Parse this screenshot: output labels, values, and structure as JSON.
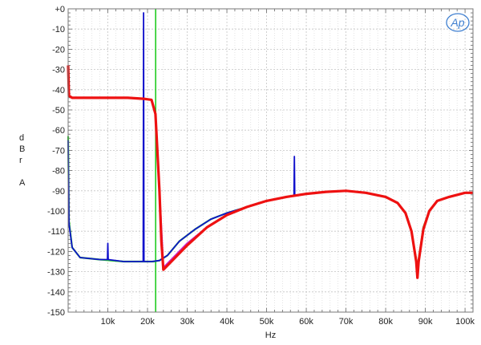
{
  "chart_data": {
    "type": "line",
    "xlabel": "Hz",
    "ylabel_lines": [
      "d",
      "B",
      "r",
      "",
      "A"
    ],
    "logo": "Ap",
    "xlim": [
      0,
      102000
    ],
    "ylim": [
      -150,
      0
    ],
    "x_ticks": [
      {
        "value": 10000,
        "label": "10k"
      },
      {
        "value": 20000,
        "label": "20k"
      },
      {
        "value": 30000,
        "label": "30k"
      },
      {
        "value": 40000,
        "label": "40k"
      },
      {
        "value": 50000,
        "label": "50k"
      },
      {
        "value": 60000,
        "label": "60k"
      },
      {
        "value": 70000,
        "label": "70k"
      },
      {
        "value": 80000,
        "label": "80k"
      },
      {
        "value": 90000,
        "label": "90k"
      },
      {
        "value": 100000,
        "label": "100k"
      }
    ],
    "y_ticks": [
      {
        "value": 0,
        "label": "+0"
      },
      {
        "value": -10,
        "label": "-10"
      },
      {
        "value": -20,
        "label": "-20"
      },
      {
        "value": -30,
        "label": "-30"
      },
      {
        "value": -40,
        "label": "-40"
      },
      {
        "value": -50,
        "label": "-50"
      },
      {
        "value": -60,
        "label": "-60"
      },
      {
        "value": -70,
        "label": "-70"
      },
      {
        "value": -80,
        "label": "-80"
      },
      {
        "value": -90,
        "label": "-90"
      },
      {
        "value": -100,
        "label": "-100"
      },
      {
        "value": -110,
        "label": "-110"
      },
      {
        "value": -120,
        "label": "-120"
      },
      {
        "value": -130,
        "label": "-130"
      },
      {
        "value": -140,
        "label": "-140"
      },
      {
        "value": -150,
        "label": "-150"
      }
    ],
    "grid": true,
    "series": [
      {
        "color": "#22cc22",
        "x": [
          0,
          200,
          1000,
          3000,
          8000,
          14000,
          18000,
          20000,
          21500,
          23000,
          25000,
          28000,
          32000,
          36000,
          40000,
          45000,
          50000,
          55000,
          60000,
          65000,
          70000,
          75000,
          80000,
          83000,
          85000,
          86500,
          87700,
          88000,
          88300,
          89500,
          91000,
          93000,
          96000,
          100000,
          102000
        ],
        "y": [
          -63,
          -105,
          -118,
          -123,
          -124,
          -125,
          -125,
          -125,
          -125,
          -124.5,
          -122,
          -115,
          -109,
          -104,
          -101,
          -98,
          -95,
          -93,
          -91.5,
          -90.5,
          -90,
          -91,
          -93,
          -96,
          -101,
          -110,
          -124,
          -127,
          -124,
          -108,
          -100,
          -95,
          -93,
          -91,
          -91
        ]
      },
      {
        "color": "#cc22cc",
        "x": [
          0,
          200,
          1000,
          5000,
          10000,
          15000,
          19000,
          21000,
          22000,
          23000,
          24000,
          26000,
          30000,
          35000,
          40000,
          45000,
          50000,
          55000,
          60000,
          65000,
          70000,
          75000,
          80000,
          83000,
          85000,
          86500,
          87700,
          88000,
          88300,
          89500,
          91000,
          93000,
          96000,
          100000,
          102000
        ],
        "y": [
          -28,
          -43,
          -44,
          -44,
          -44,
          -44,
          -44.5,
          -45,
          -52,
          -90,
          -128,
          -124,
          -116,
          -108,
          -102,
          -98,
          -95,
          -93,
          -91.5,
          -90.5,
          -90,
          -91,
          -93,
          -96,
          -101,
          -110,
          -125,
          -131,
          -125,
          -109,
          -100,
          -95,
          -93,
          -91,
          -91
        ]
      },
      {
        "color": "#1111cc",
        "x": [
          0,
          200,
          1000,
          3000,
          8000,
          9900,
          10000,
          10100,
          14000,
          18000,
          18900,
          19000,
          19100,
          21000,
          23000,
          25000,
          28000,
          32000,
          36000,
          40000,
          45000,
          50000,
          55000,
          56900,
          57000,
          57100,
          60000,
          65000,
          70000,
          75000,
          80000,
          83000,
          85000,
          86500,
          87700,
          88000,
          88300,
          89500,
          91000,
          93000,
          96000,
          100000,
          102000
        ],
        "y": [
          -65,
          -106,
          -118,
          -123,
          -124,
          -124,
          -116,
          -124,
          -125,
          -125,
          -125,
          -2,
          -125,
          -125,
          -124.5,
          -122,
          -115,
          -109,
          -104,
          -101,
          -98,
          -95,
          -93,
          -92.5,
          -73,
          -92.5,
          -91.5,
          -90.5,
          -90,
          -91,
          -93,
          -96,
          -101,
          -110,
          -125,
          -131,
          -125,
          -109,
          -100,
          -95,
          -93,
          -91,
          -91
        ]
      },
      {
        "color": "#ee1111",
        "x": [
          0,
          200,
          1000,
          5000,
          10000,
          15000,
          19000,
          21000,
          22000,
          23000,
          23500,
          24000,
          26000,
          30000,
          35000,
          40000,
          45000,
          50000,
          55000,
          60000,
          65000,
          70000,
          75000,
          80000,
          83000,
          85000,
          86500,
          87700,
          88000,
          88300,
          89500,
          91000,
          93000,
          96000,
          100000,
          102000
        ],
        "y": [
          -28,
          -43,
          -44,
          -44,
          -44,
          -44,
          -44.5,
          -45,
          -52,
          -90,
          -115,
          -129,
          -125,
          -117,
          -108,
          -102,
          -98,
          -95,
          -93,
          -91.5,
          -90.5,
          -90,
          -91,
          -93,
          -96,
          -101,
          -110,
          -125,
          -133,
          -125,
          -109,
          -100,
          -95,
          -93,
          -91,
          -91
        ]
      }
    ],
    "vertical_markers": [
      {
        "x": 22050,
        "color": "#22cc22"
      }
    ]
  }
}
